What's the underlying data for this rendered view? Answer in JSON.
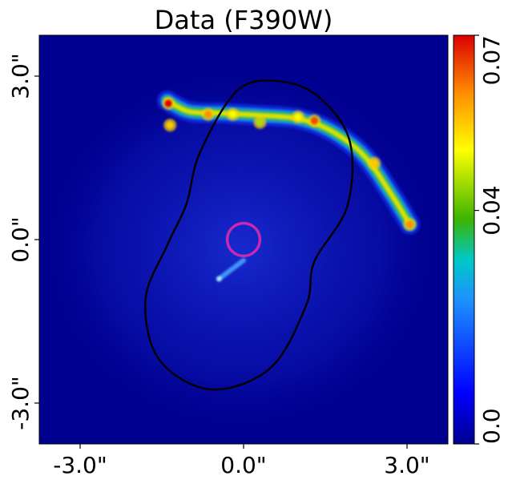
{
  "chart_data": {
    "type": "heatmap",
    "title": "Data (F390W)",
    "xlim": [
      -3.75,
      3.75
    ],
    "ylim": [
      -3.75,
      3.75
    ],
    "xticks": [
      -3.0,
      0.0,
      3.0
    ],
    "yticks": [
      -3.0,
      0.0,
      3.0
    ],
    "xtick_labels": [
      "-3.0\"",
      "0.0\"",
      "3.0\""
    ],
    "ytick_labels": [
      "-3.0\"",
      "0.0\"",
      "3.0\""
    ],
    "colorbar": {
      "range": [
        0.0,
        0.07
      ],
      "ticks": [
        0.0,
        0.04,
        0.07
      ],
      "tick_labels": [
        "0.0",
        "0.04",
        "0.07"
      ],
      "colormap": "jet",
      "colors": [
        "#00008f",
        "#0000ff",
        "#1e90ff",
        "#00c8c8",
        "#3cb400",
        "#ffff00",
        "#ff8c00",
        "#dc0000"
      ]
    },
    "background_color": "#00008f",
    "arc_path": [
      [
        -1.4,
        2.55
      ],
      [
        -1.0,
        2.35
      ],
      [
        -0.4,
        2.32
      ],
      [
        0.3,
        2.28
      ],
      [
        1.0,
        2.22
      ],
      [
        1.6,
        2.0
      ],
      [
        2.2,
        1.55
      ],
      [
        2.7,
        0.85
      ],
      [
        3.05,
        0.28
      ]
    ],
    "bright_knots": [
      {
        "x": -1.38,
        "y": 2.5,
        "v": 0.07
      },
      {
        "x": -1.35,
        "y": 2.1,
        "v": 0.055
      },
      {
        "x": -0.65,
        "y": 2.3,
        "v": 0.06
      },
      {
        "x": -0.2,
        "y": 2.3,
        "v": 0.05
      },
      {
        "x": 0.3,
        "y": 2.15,
        "v": 0.045
      },
      {
        "x": 1.0,
        "y": 2.25,
        "v": 0.05
      },
      {
        "x": 1.3,
        "y": 2.18,
        "v": 0.065
      },
      {
        "x": 2.4,
        "y": 1.4,
        "v": 0.055
      },
      {
        "x": 3.05,
        "y": 0.28,
        "v": 0.06
      }
    ],
    "faint_source": [
      [
        -0.45,
        -0.72
      ],
      [
        0.0,
        -0.38
      ]
    ],
    "critical_curve": [
      [
        0.7,
        2.9
      ],
      [
        1.4,
        2.6
      ],
      [
        1.95,
        1.8
      ],
      [
        1.9,
        0.6
      ],
      [
        1.3,
        -0.4
      ],
      [
        1.15,
        -1.2
      ],
      [
        0.5,
        -2.35
      ],
      [
        -0.6,
        -2.75
      ],
      [
        -1.55,
        -2.2
      ],
      [
        -1.8,
        -1.1
      ],
      [
        -1.4,
        -0.1
      ],
      [
        -1.05,
        0.65
      ],
      [
        -0.8,
        1.6
      ],
      [
        -0.1,
        2.75
      ]
    ],
    "source_marker": {
      "x": 0.0,
      "y": 0.0,
      "radius": 0.3,
      "color": "#c828b4"
    }
  }
}
